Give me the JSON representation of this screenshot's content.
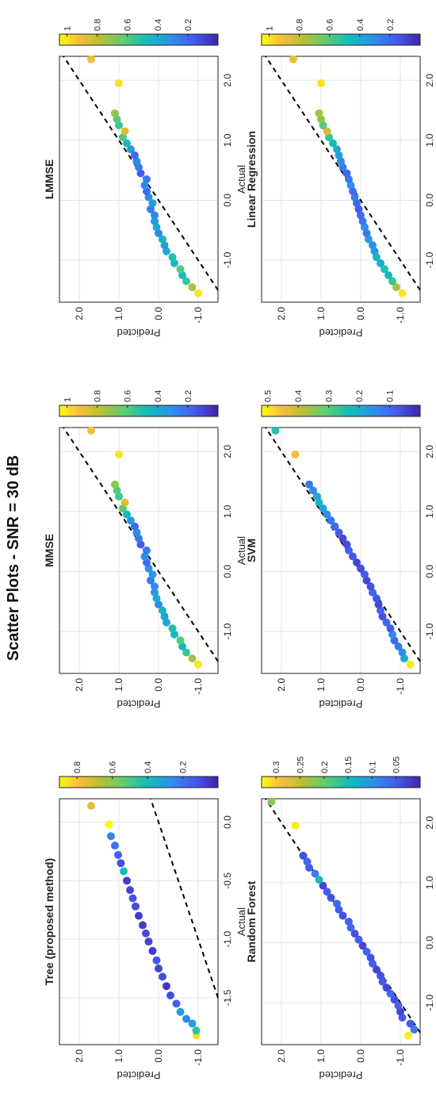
{
  "figure_title": "Scatter Plots - SNR = 30 dB",
  "colors": {
    "point_colormap": "parula",
    "reference_line": "#000000",
    "grid": "#e6e6e6",
    "axis": "#222222",
    "point_low": "#3e26a8",
    "point_high": "#f9fb0e"
  },
  "chart_data": [
    {
      "type": "scatter",
      "title": "Tree (proposed method)",
      "xlabel": "Actual",
      "ylabel": "Predicted",
      "xticks": [
        "-1.5",
        "-1.0",
        "-0.5",
        "0.0"
      ],
      "xtick_values": [
        -1.5,
        -1.0,
        -0.5,
        0.0
      ],
      "yticks": [
        "-1.0",
        "0.0",
        "1.0",
        "2.0"
      ],
      "ytick_values": [
        -1.0,
        0.0,
        1.0,
        2.0
      ],
      "xlim": [
        -1.9,
        0.2
      ],
      "ylim": [
        -1.5,
        2.5
      ],
      "colorbar_ticks": [
        "0.2",
        "0.4",
        "0.6",
        "0.8"
      ],
      "colorbar_range": [
        0.0,
        0.9
      ],
      "grid": true,
      "reference_line": "y = x (dashed)",
      "x": [
        -1.82,
        -1.78,
        -1.72,
        -1.68,
        -1.62,
        -1.55,
        -1.48,
        -1.4,
        -1.32,
        -1.25,
        -1.18,
        -1.1,
        -1.02,
        -0.95,
        -0.88,
        -0.8,
        -0.72,
        -0.65,
        -0.58,
        -0.5,
        -0.42,
        -0.35,
        -0.28,
        -0.2,
        -0.12,
        -0.02,
        0.14
      ],
      "y": [
        -0.95,
        -0.95,
        -0.85,
        -0.7,
        -0.55,
        -0.45,
        -0.3,
        -0.2,
        -0.1,
        0.0,
        0.05,
        0.15,
        0.25,
        0.32,
        0.4,
        0.5,
        0.58,
        0.65,
        0.72,
        0.8,
        0.88,
        0.95,
        1.02,
        1.1,
        1.2,
        1.25,
        1.7
      ],
      "c": [
        0.85,
        0.45,
        0.3,
        0.25,
        0.3,
        0.15,
        0.1,
        0.05,
        0.1,
        0.08,
        0.12,
        0.05,
        0.08,
        0.1,
        0.06,
        0.05,
        0.1,
        0.12,
        0.08,
        0.06,
        0.4,
        0.1,
        0.15,
        0.2,
        0.25,
        0.9,
        0.75
      ]
    },
    {
      "type": "scatter",
      "title": "MMSE",
      "xlabel": "Actual",
      "ylabel": "Predicted",
      "xticks": [
        "-1.0",
        "0.0",
        "1.0",
        "2.0"
      ],
      "xtick_values": [
        -1.0,
        0.0,
        1.0,
        2.0
      ],
      "yticks": [
        "-1.0",
        "0.0",
        "1.0",
        "2.0"
      ],
      "ytick_values": [
        -1.0,
        0.0,
        1.0,
        2.0
      ],
      "xlim": [
        -1.7,
        2.4
      ],
      "ylim": [
        -1.5,
        2.5
      ],
      "colorbar_ticks": [
        "0.2",
        "0.4",
        "0.6",
        "0.8",
        "1"
      ],
      "colorbar_range": [
        0.0,
        1.05
      ],
      "grid": true,
      "reference_line": "y = x (dashed)",
      "x": [
        -1.55,
        -1.45,
        -1.35,
        -1.25,
        -1.15,
        -1.05,
        -0.95,
        -0.85,
        -0.75,
        -0.65,
        -0.55,
        -0.45,
        -0.35,
        -0.25,
        -0.15,
        -0.05,
        0.05,
        0.15,
        0.25,
        0.35,
        0.45,
        0.55,
        0.65,
        0.75,
        0.85,
        0.95,
        1.05,
        1.15,
        1.25,
        1.35,
        1.45,
        1.95,
        2.35
      ],
      "y": [
        -1.0,
        -0.85,
        -0.7,
        -0.6,
        -0.55,
        -0.4,
        -0.35,
        -0.2,
        -0.15,
        -0.1,
        0.0,
        0.05,
        0.1,
        0.1,
        0.2,
        0.15,
        0.25,
        0.3,
        0.35,
        0.3,
        0.45,
        0.5,
        0.55,
        0.6,
        0.7,
        0.8,
        0.9,
        0.85,
        1.0,
        1.05,
        1.1,
        1.0,
        1.7
      ],
      "c": [
        1.0,
        0.75,
        0.55,
        0.45,
        0.6,
        0.45,
        0.5,
        0.4,
        0.35,
        0.45,
        0.3,
        0.4,
        0.35,
        0.3,
        0.25,
        0.35,
        0.3,
        0.2,
        0.3,
        0.25,
        0.15,
        0.25,
        0.3,
        0.2,
        0.35,
        0.45,
        0.6,
        0.85,
        0.55,
        0.6,
        0.7,
        1.0,
        0.9
      ]
    },
    {
      "type": "scatter",
      "title": "LMMSE",
      "xlabel": "Actual",
      "ylabel": "Predicted",
      "xticks": [
        "-1.0",
        "0.0",
        "1.0",
        "2.0"
      ],
      "xtick_values": [
        -1.0,
        0.0,
        1.0,
        2.0
      ],
      "yticks": [
        "-1.0",
        "0.0",
        "1.0",
        "2.0"
      ],
      "ytick_values": [
        -1.0,
        0.0,
        1.0,
        2.0
      ],
      "xlim": [
        -1.7,
        2.4
      ],
      "ylim": [
        -1.5,
        2.5
      ],
      "colorbar_ticks": [
        "0.2",
        "0.4",
        "0.6",
        "0.8",
        "1"
      ],
      "colorbar_range": [
        0.0,
        1.05
      ],
      "grid": true,
      "reference_line": "y = x (dashed)",
      "x": [
        -1.55,
        -1.45,
        -1.35,
        -1.25,
        -1.15,
        -1.05,
        -0.95,
        -0.85,
        -0.75,
        -0.65,
        -0.55,
        -0.45,
        -0.35,
        -0.25,
        -0.15,
        -0.05,
        0.05,
        0.15,
        0.25,
        0.35,
        0.45,
        0.55,
        0.65,
        0.75,
        0.85,
        0.95,
        1.05,
        1.15,
        1.25,
        1.35,
        1.45,
        1.95,
        2.35
      ],
      "y": [
        -1.0,
        -0.85,
        -0.7,
        -0.6,
        -0.55,
        -0.4,
        -0.35,
        -0.2,
        -0.15,
        -0.1,
        0.0,
        0.05,
        0.1,
        0.1,
        0.2,
        0.15,
        0.25,
        0.3,
        0.35,
        0.3,
        0.45,
        0.5,
        0.55,
        0.6,
        0.7,
        0.8,
        0.9,
        0.85,
        1.0,
        1.05,
        1.1,
        1.0,
        1.7
      ],
      "c": [
        1.0,
        0.75,
        0.55,
        0.45,
        0.6,
        0.45,
        0.5,
        0.4,
        0.35,
        0.45,
        0.3,
        0.4,
        0.35,
        0.3,
        0.25,
        0.35,
        0.3,
        0.2,
        0.3,
        0.25,
        0.15,
        0.25,
        0.3,
        0.2,
        0.35,
        0.45,
        0.6,
        0.85,
        0.55,
        0.6,
        0.7,
        1.0,
        0.9
      ]
    },
    {
      "type": "scatter",
      "title": "Random Forest",
      "xlabel": "Actual",
      "ylabel": "Predicted",
      "xticks": [
        "-1.0",
        "0.0",
        "1.0",
        "2.0"
      ],
      "xtick_values": [
        -1.0,
        0.0,
        1.0,
        2.0
      ],
      "yticks": [
        "-1.0",
        "0.0",
        "1.0",
        "2.0"
      ],
      "ytick_values": [
        -1.0,
        0.0,
        1.0,
        2.0
      ],
      "xlim": [
        -1.7,
        2.4
      ],
      "ylim": [
        -1.5,
        2.5
      ],
      "colorbar_ticks": [
        "0.05",
        "0.1",
        "0.15",
        "0.2",
        "0.25",
        "0.3"
      ],
      "colorbar_range": [
        0.0,
        0.33
      ],
      "grid": true,
      "reference_line": "y = x (dashed)",
      "x": [
        -1.55,
        -1.45,
        -1.35,
        -1.25,
        -1.15,
        -1.05,
        -0.95,
        -0.85,
        -0.75,
        -0.65,
        -0.55,
        -0.45,
        -0.35,
        -0.25,
        -0.15,
        -0.05,
        0.05,
        0.15,
        0.25,
        0.35,
        0.45,
        0.55,
        0.65,
        0.75,
        0.85,
        0.95,
        1.05,
        1.15,
        1.25,
        1.35,
        1.45,
        1.95,
        2.35
      ],
      "y": [
        -1.2,
        -1.35,
        -1.25,
        -1.05,
        -1.0,
        -0.95,
        -0.85,
        -0.75,
        -0.65,
        -0.55,
        -0.5,
        -0.4,
        -0.3,
        -0.25,
        -0.15,
        -0.05,
        0.05,
        0.15,
        0.25,
        0.3,
        0.45,
        0.55,
        0.6,
        0.75,
        0.85,
        0.95,
        1.05,
        1.15,
        1.3,
        1.35,
        1.45,
        1.65,
        2.25
      ],
      "c": [
        0.32,
        0.08,
        0.05,
        0.05,
        0.03,
        0.05,
        0.04,
        0.06,
        0.03,
        0.05,
        0.04,
        0.03,
        0.05,
        0.04,
        0.06,
        0.03,
        0.05,
        0.04,
        0.06,
        0.05,
        0.04,
        0.05,
        0.06,
        0.04,
        0.05,
        0.03,
        0.15,
        0.08,
        0.05,
        0.06,
        0.04,
        0.32,
        0.22
      ]
    },
    {
      "type": "scatter",
      "title": "SVM",
      "xlabel": "Actual",
      "ylabel": "Predicted",
      "xticks": [
        "-1.0",
        "0.0",
        "1.0",
        "2.0"
      ],
      "xtick_values": [
        -1.0,
        0.0,
        1.0,
        2.0
      ],
      "yticks": [
        "-1.0",
        "0.0",
        "1.0",
        "2.0"
      ],
      "ytick_values": [
        -1.0,
        0.0,
        1.0,
        2.0
      ],
      "xlim": [
        -1.7,
        2.4
      ],
      "ylim": [
        -1.5,
        2.5
      ],
      "colorbar_ticks": [
        "0.1",
        "0.2",
        "0.3",
        "0.4",
        "0.5"
      ],
      "colorbar_range": [
        0.0,
        0.52
      ],
      "grid": true,
      "reference_line": "y = x (dashed)",
      "x": [
        -1.55,
        -1.45,
        -1.35,
        -1.25,
        -1.15,
        -1.05,
        -0.95,
        -0.85,
        -0.75,
        -0.65,
        -0.55,
        -0.45,
        -0.35,
        -0.25,
        -0.15,
        -0.05,
        0.05,
        0.15,
        0.25,
        0.35,
        0.45,
        0.55,
        0.65,
        0.75,
        0.85,
        0.95,
        1.05,
        1.15,
        1.25,
        1.35,
        1.45,
        1.95,
        2.35
      ],
      "y": [
        -1.25,
        -1.1,
        -1.05,
        -0.95,
        -0.85,
        -0.8,
        -0.75,
        -0.65,
        -0.55,
        -0.5,
        -0.45,
        -0.4,
        -0.3,
        -0.25,
        -0.15,
        -0.1,
        0.0,
        0.1,
        0.2,
        0.3,
        0.35,
        0.45,
        0.55,
        0.65,
        0.75,
        0.85,
        0.95,
        1.05,
        1.1,
        1.2,
        1.3,
        1.65,
        2.15
      ],
      "c": [
        0.5,
        0.2,
        0.15,
        0.12,
        0.1,
        0.15,
        0.08,
        0.1,
        0.06,
        0.08,
        0.05,
        0.07,
        0.1,
        0.06,
        0.05,
        0.08,
        0.06,
        0.05,
        0.07,
        0.09,
        0.06,
        0.05,
        0.08,
        0.1,
        0.12,
        0.15,
        0.18,
        0.22,
        0.2,
        0.15,
        0.12,
        0.45,
        0.25
      ]
    },
    {
      "type": "scatter",
      "title": "Linear Regression",
      "xlabel": "Actual",
      "ylabel": "Predicted",
      "xticks": [
        "-1.0",
        "0.0",
        "1.0",
        "2.0"
      ],
      "xtick_values": [
        -1.0,
        0.0,
        1.0,
        2.0
      ],
      "yticks": [
        "-1.0",
        "0.0",
        "1.0",
        "2.0"
      ],
      "ytick_values": [
        -1.0,
        0.0,
        1.0,
        2.0
      ],
      "xlim": [
        -1.7,
        2.4
      ],
      "ylim": [
        -1.5,
        2.5
      ],
      "colorbar_ticks": [
        "0.2",
        "0.4",
        "0.6",
        "0.8",
        "1"
      ],
      "colorbar_range": [
        0.0,
        1.05
      ],
      "grid": true,
      "reference_line": "y = x (dashed)",
      "x": [
        -1.55,
        -1.45,
        -1.35,
        -1.25,
        -1.15,
        -1.05,
        -0.95,
        -0.85,
        -0.75,
        -0.65,
        -0.55,
        -0.45,
        -0.35,
        -0.25,
        -0.15,
        -0.05,
        0.05,
        0.15,
        0.25,
        0.35,
        0.45,
        0.55,
        0.65,
        0.75,
        0.85,
        0.95,
        1.05,
        1.15,
        1.25,
        1.35,
        1.45,
        1.95,
        2.35
      ],
      "y": [
        -1.05,
        -0.9,
        -0.8,
        -0.7,
        -0.6,
        -0.5,
        -0.4,
        -0.35,
        -0.3,
        -0.2,
        -0.15,
        -0.1,
        -0.05,
        0.0,
        0.05,
        0.1,
        0.15,
        0.2,
        0.25,
        0.3,
        0.35,
        0.45,
        0.5,
        0.55,
        0.6,
        0.7,
        0.8,
        0.85,
        0.95,
        1.0,
        1.05,
        1.0,
        1.7
      ],
      "c": [
        1.0,
        0.75,
        0.55,
        0.45,
        0.5,
        0.4,
        0.45,
        0.35,
        0.3,
        0.35,
        0.25,
        0.3,
        0.25,
        0.2,
        0.15,
        0.2,
        0.25,
        0.2,
        0.3,
        0.25,
        0.2,
        0.25,
        0.3,
        0.35,
        0.4,
        0.45,
        0.55,
        0.85,
        0.6,
        0.7,
        0.75,
        1.0,
        0.9
      ]
    }
  ]
}
